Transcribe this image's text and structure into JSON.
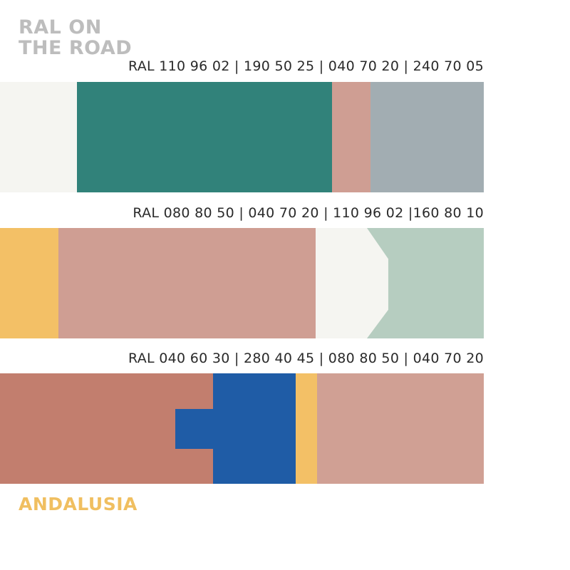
{
  "title": {
    "line1": "RAL ON",
    "line2": "THE ROAD"
  },
  "region": "ANDALUSIA",
  "palettes": [
    {
      "codes": "RAL 110 96 02 | 190 50 25 | 040 70 20 | 240 70 05",
      "colors": [
        "#f5f5f1",
        "#31827a",
        "#cf9e93",
        "#a2adb2"
      ]
    },
    {
      "codes": "RAL 080 80 50 | 040 70 20 | 110 96 02 |160 80 10",
      "colors": [
        "#f3c066",
        "#cf9e93",
        "#f5f5f1",
        "#b6cdc0"
      ]
    },
    {
      "codes": "RAL 040 60 30 | 280 40 45 | 080 80 50 | 040 70 20",
      "colors": [
        "#c27e6e",
        "#1f5ca6",
        "#f3c066",
        "#d0a094"
      ]
    }
  ]
}
